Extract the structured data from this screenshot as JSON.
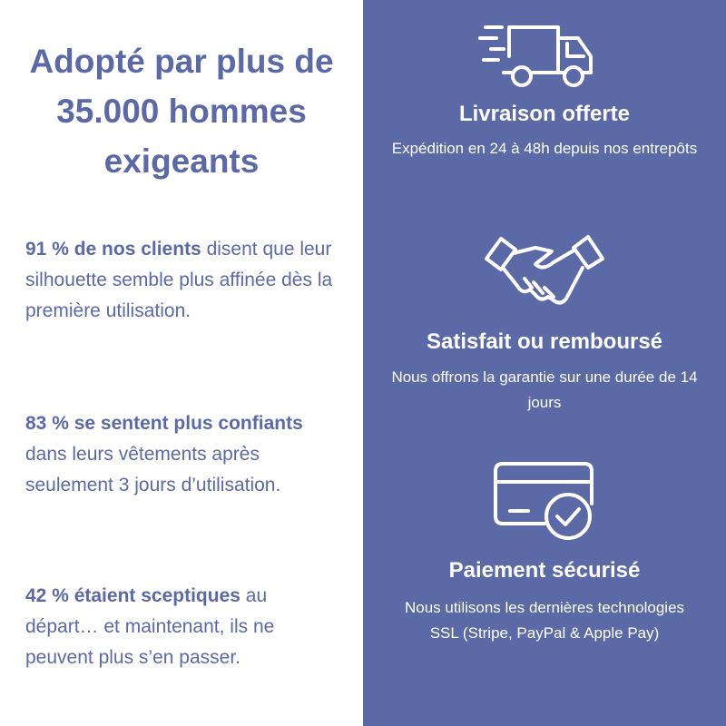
{
  "heading": "Adopté par plus de 35.000 hommes exigeants",
  "stats": [
    {
      "bold": "91 % de nos clients",
      "text": " disent que leur silhouette semble plus affinée dès la première utilisation."
    },
    {
      "bold": "83 % se sentent plus confiants",
      "text": " dans leurs vêtements après seulement 3 jours d’utilisation."
    },
    {
      "bold": "42 % étaient sceptiques",
      "text": " au départ… et maintenant, ils ne peuvent plus s’en passer."
    }
  ],
  "features": [
    {
      "title": "Livraison offerte",
      "text": "Expédition en 24 à 48h depuis nos entrepôts"
    },
    {
      "title": "Satisfait ou remboursé",
      "text": "Nous offrons la garantie sur une durée de 14 jours"
    },
    {
      "title": "Paiement sécurisé",
      "text": "Nous utilisons les dernières technologies SSL (Stripe, PayPal & Apple Pay)"
    }
  ]
}
